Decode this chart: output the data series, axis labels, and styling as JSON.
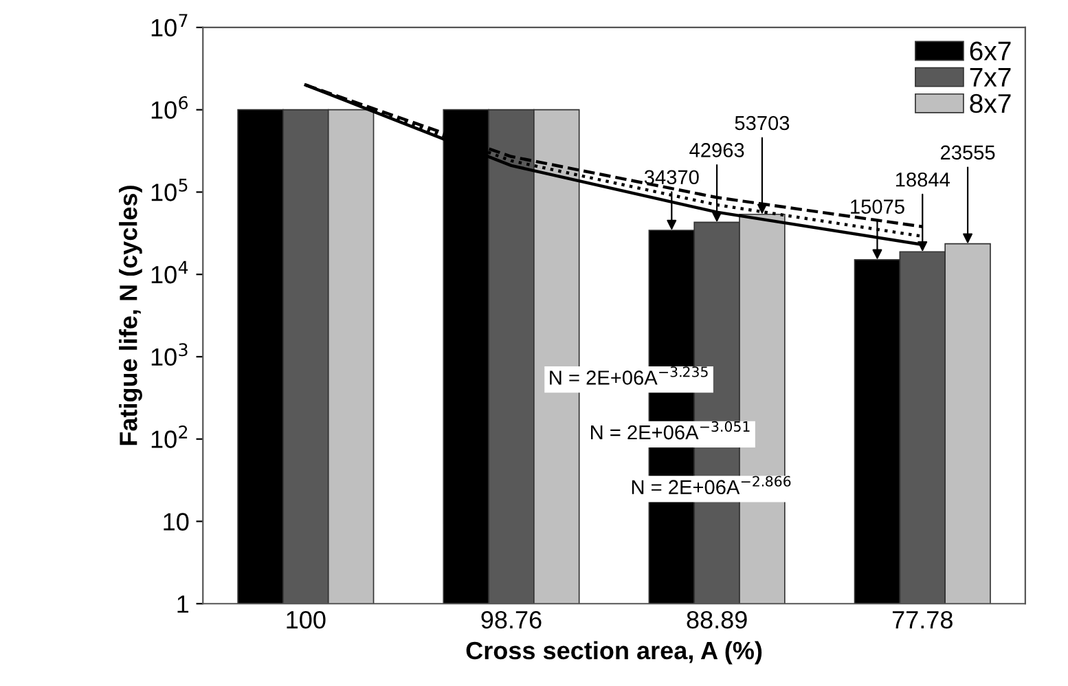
{
  "chart_data": {
    "type": "bar",
    "xlabel": "Cross section area, A (%)",
    "ylabel": "Fatigue life, N (cycles)",
    "categories": [
      "100",
      "98.76",
      "88.89",
      "77.78"
    ],
    "log": true,
    "ylim": [
      1,
      10000000
    ],
    "yticks": [
      1,
      10,
      {
        "value": 100,
        "label": "10$^{2}$"
      },
      {
        "value": 1000,
        "label": "10$^{3}$"
      },
      {
        "value": 10000,
        "label": "10$^{4}$"
      },
      {
        "value": 100000,
        "label": "10$^{5}$"
      },
      {
        "value": 1000000,
        "label": "10$^{6}$"
      },
      {
        "value": 10000000,
        "label": "10$^{7}$"
      }
    ],
    "grid": false,
    "legend": "top right",
    "series": [
      {
        "name": "6x7",
        "color": "#000000",
        "values": [
          1000000,
          1000000,
          34370,
          15075
        ],
        "value_labels": [
          null,
          null,
          "34370",
          "15075"
        ]
      },
      {
        "name": "7x7",
        "color": "#595959",
        "values": [
          1000000,
          1000000,
          42963,
          18844
        ],
        "value_labels": [
          null,
          null,
          "42963",
          "18844"
        ]
      },
      {
        "name": "8x7",
        "color": "#bfbfbf",
        "values": [
          1000000,
          1000000,
          53703,
          23555
        ],
        "value_labels": [
          null,
          null,
          "53703",
          "23555"
        ]
      },
      {
        "type": "line",
        "color": "#000000",
        "line_style": "solid",
        "x": [
          "100",
          "98.76",
          "88.89",
          "77.78"
        ],
        "values": [
          2000000,
          210000,
          57000,
          23000
        ]
      },
      {
        "type": "line",
        "color": "#000000",
        "line_style": "dotted",
        "x": [
          "100",
          "98.76",
          "88.89",
          "77.78"
        ],
        "values": [
          2000000,
          240000,
          70000,
          29000
        ]
      },
      {
        "type": "line",
        "color": "#000000",
        "line_style": "dashed",
        "x": [
          "100",
          "98.76",
          "88.89",
          "77.78"
        ],
        "values": [
          2000000,
          270000,
          86000,
          38000
        ]
      }
    ],
    "annotations": [
      "N = 2E+06A$^{−3.235}$",
      "N = 2E+06A$^{−3.051}$",
      "N = 2E+06A$^{−2.866}$"
    ]
  }
}
